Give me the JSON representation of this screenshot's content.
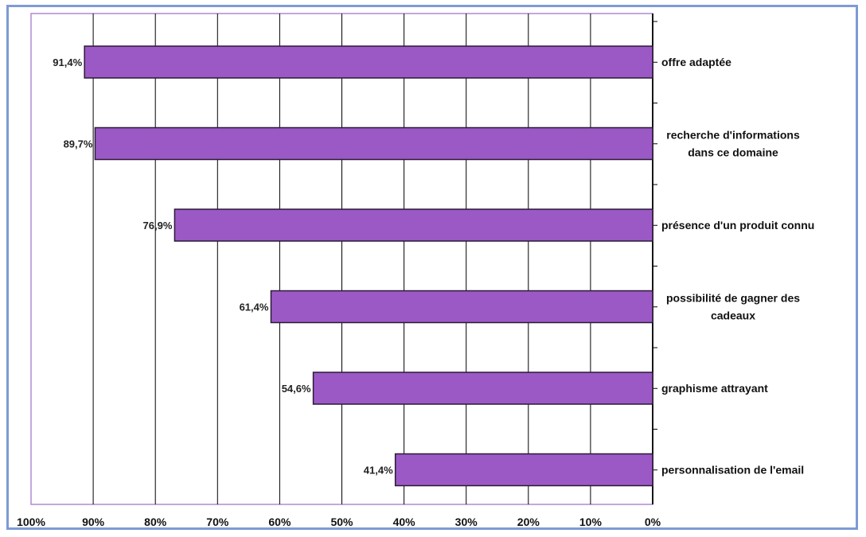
{
  "chart_data": {
    "type": "bar",
    "orientation": "horizontal",
    "x_axis_reversed": true,
    "categories": [
      "offre adaptée",
      "recherche d'informations\ndans ce domaine",
      "présence d'un produit connu",
      "possibilité de gagner des\ncadeaux",
      "graphisme attrayant",
      "personnalisation de l'email"
    ],
    "values": [
      91.4,
      89.7,
      76.9,
      61.4,
      54.6,
      41.4
    ],
    "value_labels": [
      "91,4%",
      "89,7%",
      "76,9%",
      "61,4%",
      "54,6%",
      "41,4%"
    ],
    "xlim": [
      0,
      100
    ],
    "x_ticks": [
      100,
      90,
      80,
      70,
      60,
      50,
      40,
      30,
      20,
      10,
      0
    ],
    "x_tick_labels": [
      "100%",
      "90%",
      "80%",
      "70%",
      "60%",
      "50%",
      "40%",
      "30%",
      "20%",
      "10%",
      "0%"
    ],
    "grid": "vertical lines",
    "legend": "none",
    "title": "",
    "xlabel": "",
    "ylabel": "",
    "colors": {
      "bar_fill": "#9b59c6",
      "bar_stroke": "#2a1a35",
      "gridline": "#000000",
      "plot_border": "#b08ad0",
      "frame": "#7d9bd6"
    }
  }
}
